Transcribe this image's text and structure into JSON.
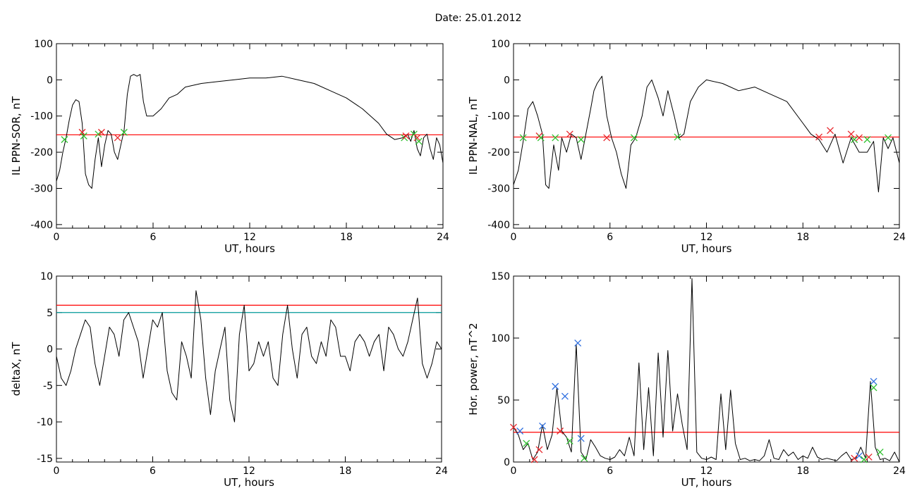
{
  "figure": {
    "title": "Date:  25.01.2012"
  },
  "colors": {
    "trace": "#000000",
    "threshold_red": "#ff0000",
    "threshold_teal": "#009999",
    "marker_red": "#e8262b",
    "marker_green": "#2ec12e",
    "marker_blue": "#2f6fe0",
    "active_trace": "#1f5fcf"
  },
  "chart_data": [
    {
      "id": "sor",
      "type": "line",
      "xlabel": "UT, hours",
      "ylabel": "IL PPN-SOR, nT",
      "xlim": [
        0,
        24
      ],
      "ylim": [
        -410,
        100
      ],
      "xticks": [
        0,
        6,
        12,
        18,
        24
      ],
      "yticks": [
        100,
        0,
        -100,
        -200,
        -300,
        -400
      ],
      "threshold": [
        {
          "y": -152,
          "color": "#ff0000"
        }
      ],
      "series": [
        {
          "x": [
            0,
            0.2,
            0.4,
            0.6,
            0.8,
            1.0,
            1.2,
            1.4,
            1.6,
            1.8,
            2.0,
            2.2,
            2.4,
            2.6,
            2.8,
            3.0,
            3.2,
            3.4,
            3.6,
            3.8,
            4.0,
            4.2,
            4.4,
            4.6,
            4.8,
            5.0,
            5.2,
            5.4,
            5.6,
            6.0,
            6.5,
            7.0,
            7.5,
            8.0,
            9.0,
            10.0,
            11.0,
            12.0,
            13.0,
            14.0,
            15.0,
            16.0,
            17.0,
            18.0,
            19.0,
            20.0,
            20.5,
            21.0,
            21.5,
            21.8,
            22.0,
            22.2,
            22.4,
            22.6,
            22.8,
            23.0,
            23.2,
            23.4,
            23.6,
            23.8,
            24.0
          ],
          "y": [
            -280,
            -250,
            -200,
            -160,
            -110,
            -70,
            -55,
            -60,
            -120,
            -260,
            -290,
            -300,
            -220,
            -160,
            -240,
            -180,
            -140,
            -150,
            -200,
            -220,
            -180,
            -140,
            -40,
            10,
            15,
            10,
            15,
            -60,
            -100,
            -100,
            -80,
            -50,
            -40,
            -20,
            -10,
            -5,
            0,
            5,
            5,
            10,
            0,
            -10,
            -30,
            -50,
            -80,
            -120,
            -150,
            -165,
            -160,
            -150,
            -170,
            -140,
            -190,
            -210,
            -160,
            -150,
            -190,
            -220,
            -160,
            -180,
            -230
          ]
        }
      ],
      "markers": [
        {
          "x": 0.5,
          "y": -165,
          "color": "#2ec12e"
        },
        {
          "x": 1.6,
          "y": -145,
          "color": "#e8262b"
        },
        {
          "x": 1.7,
          "y": -155,
          "color": "#2ec12e"
        },
        {
          "x": 2.6,
          "y": -150,
          "color": "#2ec12e"
        },
        {
          "x": 2.8,
          "y": -145,
          "color": "#e8262b"
        },
        {
          "x": 3.8,
          "y": -160,
          "color": "#e8262b"
        },
        {
          "x": 4.2,
          "y": -145,
          "color": "#2ec12e"
        },
        {
          "x": 21.6,
          "y": -160,
          "color": "#2ec12e"
        },
        {
          "x": 21.7,
          "y": -155,
          "color": "#e8262b"
        },
        {
          "x": 22.2,
          "y": -150,
          "color": "#2ec12e"
        },
        {
          "x": 22.4,
          "y": -160,
          "color": "#e8262b"
        },
        {
          "x": 22.5,
          "y": -170,
          "color": "#2ec12e"
        }
      ]
    },
    {
      "id": "nal",
      "type": "line",
      "xlabel": "UT, hours",
      "ylabel": "IL PPN-NAL, nT",
      "xlim": [
        0,
        24
      ],
      "ylim": [
        -410,
        100
      ],
      "xticks": [
        0,
        6,
        12,
        18,
        24
      ],
      "yticks": [
        100,
        0,
        -100,
        -200,
        -300,
        -400
      ],
      "threshold": [
        {
          "y": -158,
          "color": "#ff0000"
        }
      ],
      "series": [
        {
          "x": [
            0,
            0.3,
            0.6,
            0.9,
            1.2,
            1.5,
            1.8,
            2.0,
            2.2,
            2.5,
            2.8,
            3.0,
            3.3,
            3.6,
            3.9,
            4.2,
            4.5,
            4.8,
            5.0,
            5.2,
            5.5,
            5.8,
            6.1,
            6.4,
            6.7,
            7.0,
            7.3,
            7.6,
            8.0,
            8.3,
            8.6,
            9.0,
            9.3,
            9.6,
            10.0,
            10.3,
            10.6,
            11.0,
            11.5,
            12.0,
            13.0,
            14.0,
            15.0,
            16.0,
            17.0,
            18.0,
            18.5,
            19.0,
            19.5,
            20.0,
            20.5,
            21.0,
            21.5,
            22.0,
            22.4,
            22.7,
            23.0,
            23.3,
            23.6,
            24.0
          ],
          "y": [
            -290,
            -250,
            -170,
            -80,
            -60,
            -100,
            -150,
            -290,
            -300,
            -180,
            -250,
            -160,
            -200,
            -150,
            -160,
            -220,
            -150,
            -80,
            -30,
            -10,
            10,
            -100,
            -160,
            -200,
            -260,
            -300,
            -180,
            -160,
            -100,
            -20,
            0,
            -50,
            -100,
            -30,
            -100,
            -160,
            -150,
            -60,
            -20,
            0,
            -10,
            -30,
            -20,
            -40,
            -60,
            -120,
            -150,
            -165,
            -200,
            -150,
            -230,
            -160,
            -200,
            -200,
            -170,
            -310,
            -160,
            -190,
            -160,
            -230
          ]
        }
      ],
      "markers": [
        {
          "x": 0.6,
          "y": -160,
          "color": "#2ec12e"
        },
        {
          "x": 1.6,
          "y": -155,
          "color": "#e8262b"
        },
        {
          "x": 1.7,
          "y": -160,
          "color": "#2ec12e"
        },
        {
          "x": 2.6,
          "y": -160,
          "color": "#2ec12e"
        },
        {
          "x": 3.5,
          "y": -150,
          "color": "#e8262b"
        },
        {
          "x": 4.2,
          "y": -165,
          "color": "#2ec12e"
        },
        {
          "x": 5.8,
          "y": -160,
          "color": "#e8262b"
        },
        {
          "x": 7.5,
          "y": -160,
          "color": "#2ec12e"
        },
        {
          "x": 10.2,
          "y": -158,
          "color": "#2ec12e"
        },
        {
          "x": 19.0,
          "y": -158,
          "color": "#e8262b"
        },
        {
          "x": 19.7,
          "y": -140,
          "color": "#e8262b"
        },
        {
          "x": 21.0,
          "y": -150,
          "color": "#e8262b"
        },
        {
          "x": 21.2,
          "y": -165,
          "color": "#2ec12e"
        },
        {
          "x": 21.5,
          "y": -160,
          "color": "#e8262b"
        },
        {
          "x": 22.0,
          "y": -165,
          "color": "#2ec12e"
        },
        {
          "x": 23.3,
          "y": -160,
          "color": "#2ec12e"
        }
      ]
    },
    {
      "id": "deltax",
      "type": "line",
      "xlabel": "UT, hours",
      "ylabel": "deltaX, nT",
      "xlim": [
        0,
        24
      ],
      "ylim": [
        -15.5,
        10
      ],
      "xticks": [
        0,
        6,
        12,
        18,
        24
      ],
      "yticks": [
        10,
        5,
        0,
        -5,
        -10,
        -15
      ],
      "threshold": [
        {
          "y": 6,
          "color": "#ff0000"
        },
        {
          "y": 5,
          "color": "#009999"
        }
      ],
      "series": [
        {
          "x": [
            0,
            0.3,
            0.6,
            0.9,
            1.2,
            1.5,
            1.8,
            2.1,
            2.4,
            2.7,
            3.0,
            3.3,
            3.6,
            3.9,
            4.2,
            4.5,
            4.8,
            5.1,
            5.4,
            5.7,
            6.0,
            6.3,
            6.6,
            6.9,
            7.2,
            7.5,
            7.8,
            8.1,
            8.4,
            8.7,
            9.0,
            9.3,
            9.6,
            9.9,
            10.2,
            10.5,
            10.8,
            11.1,
            11.4,
            11.7,
            12.0,
            12.3,
            12.6,
            12.9,
            13.2,
            13.5,
            13.8,
            14.1,
            14.4,
            14.7,
            15.0,
            15.3,
            15.6,
            15.9,
            16.2,
            16.5,
            16.8,
            17.1,
            17.4,
            17.7,
            18.0,
            18.3,
            18.6,
            18.9,
            19.2,
            19.5,
            19.8,
            20.1,
            20.4,
            20.7,
            21.0,
            21.3,
            21.6,
            21.9,
            22.2,
            22.5,
            22.8,
            23.1,
            23.4,
            23.7,
            24.0
          ],
          "y": [
            -1,
            -4,
            -5,
            -3,
            0,
            2,
            4,
            3,
            -2,
            -5,
            -1,
            3,
            2,
            -1,
            4,
            5,
            3,
            1,
            -4,
            0,
            4,
            3,
            5,
            -3,
            -6,
            -7,
            1,
            -1,
            -4,
            8,
            4,
            -4,
            -9,
            -3,
            0,
            3,
            -7,
            -10,
            2,
            6,
            -3,
            -2,
            1,
            -1,
            1,
            -4,
            -5,
            2,
            6,
            0,
            -4,
            2,
            3,
            -1,
            -2,
            1,
            -1,
            4,
            3,
            -1,
            -1,
            -3,
            1,
            2,
            1,
            -1,
            1,
            2,
            -3,
            3,
            2,
            0,
            -1,
            1,
            4,
            7,
            -2,
            -4,
            -2,
            1,
            0
          ]
        }
      ],
      "markers": []
    },
    {
      "id": "power",
      "type": "line",
      "xlabel": "UT, hours",
      "ylabel": "Hor. power, nT^2",
      "xlim": [
        0,
        24
      ],
      "ylim": [
        0,
        150
      ],
      "xticks": [
        0,
        6,
        12,
        18,
        24
      ],
      "yticks": [
        150,
        100,
        50,
        0
      ],
      "threshold": [
        {
          "y": 24,
          "color": "#ff0000"
        }
      ],
      "series": [
        {
          "x": [
            0,
            0.3,
            0.6,
            0.9,
            1.2,
            1.5,
            1.8,
            2.1,
            2.4,
            2.7,
            3.0,
            3.3,
            3.6,
            3.9,
            4.2,
            4.5,
            4.8,
            5.1,
            5.4,
            5.7,
            6.0,
            6.3,
            6.6,
            6.9,
            7.2,
            7.5,
            7.8,
            8.1,
            8.4,
            8.7,
            9.0,
            9.3,
            9.6,
            9.9,
            10.2,
            10.5,
            10.8,
            11.1,
            11.4,
            11.7,
            12.0,
            12.3,
            12.6,
            12.9,
            13.2,
            13.5,
            13.8,
            14.1,
            14.4,
            14.7,
            15.0,
            15.3,
            15.6,
            15.9,
            16.2,
            16.5,
            16.8,
            17.1,
            17.4,
            17.7,
            18.0,
            18.3,
            18.6,
            18.9,
            19.2,
            19.5,
            19.8,
            20.1,
            20.4,
            20.7,
            21.0,
            21.3,
            21.6,
            21.9,
            22.2,
            22.5,
            22.8,
            23.1,
            23.4,
            23.7,
            24.0
          ],
          "y": [
            28,
            22,
            10,
            15,
            2,
            8,
            30,
            10,
            22,
            60,
            25,
            20,
            8,
            95,
            8,
            2,
            18,
            12,
            5,
            3,
            2,
            4,
            10,
            5,
            20,
            5,
            80,
            10,
            60,
            5,
            88,
            20,
            90,
            25,
            55,
            30,
            10,
            148,
            8,
            3,
            2,
            4,
            2,
            55,
            10,
            58,
            15,
            2,
            3,
            1,
            2,
            1,
            5,
            18,
            3,
            2,
            10,
            5,
            8,
            2,
            5,
            3,
            12,
            4,
            2,
            3,
            2,
            1,
            5,
            8,
            2,
            3,
            12,
            3,
            65,
            12,
            2,
            3,
            1,
            8,
            0
          ]
        }
      ],
      "markers": [
        {
          "x": 0.0,
          "y": 28,
          "color": "#e8262b"
        },
        {
          "x": 0.4,
          "y": 25,
          "color": "#2f6fe0"
        },
        {
          "x": 0.8,
          "y": 15,
          "color": "#2ec12e"
        },
        {
          "x": 1.3,
          "y": 2,
          "color": "#e8262b"
        },
        {
          "x": 1.6,
          "y": 10,
          "color": "#e8262b"
        },
        {
          "x": 1.8,
          "y": 29,
          "color": "#2f6fe0"
        },
        {
          "x": 2.6,
          "y": 61,
          "color": "#2f6fe0"
        },
        {
          "x": 2.9,
          "y": 25,
          "color": "#e8262b"
        },
        {
          "x": 3.2,
          "y": 53,
          "color": "#2f6fe0"
        },
        {
          "x": 3.5,
          "y": 17,
          "color": "#2ec12e"
        },
        {
          "x": 4.0,
          "y": 96,
          "color": "#2f6fe0"
        },
        {
          "x": 4.2,
          "y": 19,
          "color": "#2f6fe0"
        },
        {
          "x": 4.4,
          "y": 3,
          "color": "#2ec12e"
        },
        {
          "x": 21.2,
          "y": 3,
          "color": "#e8262b"
        },
        {
          "x": 21.5,
          "y": 5,
          "color": "#2f6fe0"
        },
        {
          "x": 21.8,
          "y": 2,
          "color": "#2ec12e"
        },
        {
          "x": 22.1,
          "y": 4,
          "color": "#e8262b"
        },
        {
          "x": 22.4,
          "y": 65,
          "color": "#2f6fe0"
        },
        {
          "x": 22.4,
          "y": 60,
          "color": "#2ec12e"
        },
        {
          "x": 22.8,
          "y": 8,
          "color": "#2ec12e"
        }
      ]
    }
  ]
}
